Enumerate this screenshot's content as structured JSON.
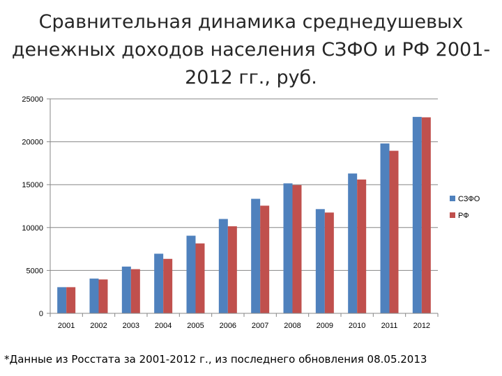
{
  "title_lines": [
    "Сравнительная динамика среднедушевых",
    "денежных доходов населения СЗФО и РФ 2001-",
    "2012 гг., руб."
  ],
  "footnote": "*Данные из Росстата за 2001-2012 г., из последнего обновления 08.05.2013",
  "colors": {
    "szfo": "#4f81bd",
    "rf": "#c0504d",
    "axis": "#868686",
    "grid": "#868686"
  },
  "chart_data": {
    "type": "bar",
    "categories": [
      "2001",
      "2002",
      "2003",
      "2004",
      "2005",
      "2006",
      "2007",
      "2008",
      "2009",
      "2010",
      "2011",
      "2012"
    ],
    "series": [
      {
        "name": "СЗФО",
        "values": [
          3050,
          4050,
          5450,
          6950,
          9050,
          11000,
          13350,
          15150,
          12150,
          16300,
          19800,
          22900
        ]
      },
      {
        "name": "РФ",
        "values": [
          3050,
          3950,
          5150,
          6350,
          8150,
          10150,
          12550,
          14950,
          11750,
          15600,
          18950,
          22850
        ]
      }
    ],
    "y_ticks": [
      "0",
      "5000",
      "10000",
      "15000",
      "20000",
      "25000"
    ],
    "ylim": [
      0,
      25000
    ],
    "grid": true,
    "legend_position": "right"
  }
}
